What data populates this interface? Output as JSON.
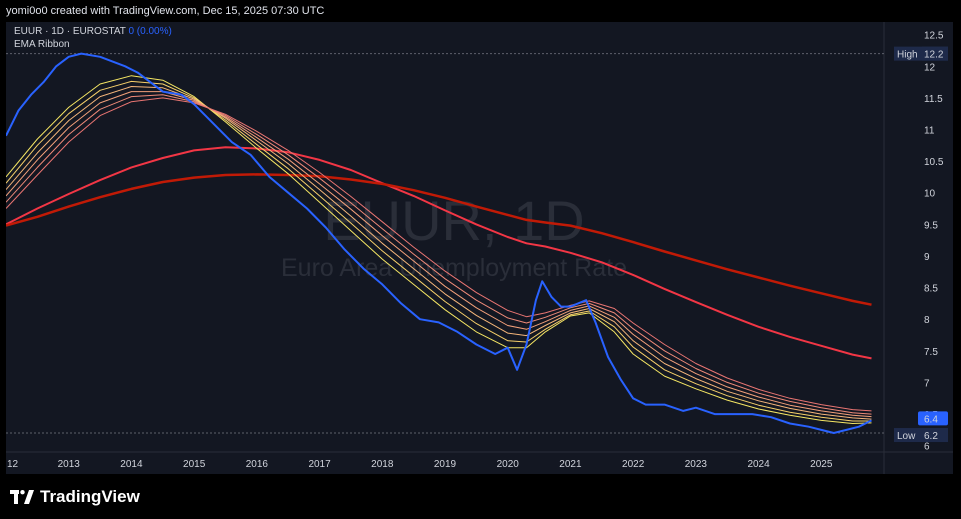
{
  "header": {
    "attribution": "yomi0o0 created with TradingView.com, Dec 15, 2025 07:30 UTC"
  },
  "legend": {
    "symbol": "EUUR · 1D · EUROSTAT",
    "change": "0 (0.00%)",
    "indicator": "EMA Ribbon"
  },
  "watermark": {
    "symbol": "EUUR, 1D",
    "name": "Euro Area Unemployment Rate"
  },
  "markers": {
    "high_label": "High",
    "high_value": "12.2",
    "low_label": "Low",
    "low_value": "6.2",
    "last_value": "6.4"
  },
  "colors": {
    "background": "#131722",
    "price_line": "#2962ff",
    "ema_short": "#f5e663",
    "ema_long_1": "#f23645",
    "ema_long_2": "#c11a06"
  },
  "brand": {
    "name": "TradingView"
  },
  "chart_data": {
    "type": "line",
    "ylim": [
      5.9,
      12.7
    ],
    "yticks": [
      "6",
      "6.5",
      "7",
      "7.5",
      "8",
      "8.5",
      "9",
      "9.5",
      "10",
      "10.5",
      "11",
      "11.5",
      "12",
      "12.5"
    ],
    "x_tick_labels": [
      "12",
      "2013",
      "2014",
      "2015",
      "2016",
      "2017",
      "2018",
      "2019",
      "2020",
      "2021",
      "2022",
      "2023",
      "2024",
      "2025"
    ],
    "x_tick_years": [
      2012,
      2013,
      2014,
      2015,
      2016,
      2017,
      2018,
      2019,
      2020,
      2021,
      2022,
      2023,
      2024,
      2025
    ],
    "xlim": [
      2012.0,
      2026.0
    ],
    "series": [
      {
        "role": "price",
        "color": "#2962ff",
        "x": [
          2012.0,
          2012.2,
          2012.4,
          2012.6,
          2012.8,
          2013.0,
          2013.2,
          2013.5,
          2013.9,
          2014.1,
          2014.3,
          2014.5,
          2014.8,
          2015.0,
          2015.3,
          2015.6,
          2015.9,
          2016.2,
          2016.5,
          2016.8,
          2017.1,
          2017.4,
          2017.7,
          2018.0,
          2018.3,
          2018.6,
          2018.9,
          2019.2,
          2019.5,
          2019.8,
          2020.0,
          2020.15,
          2020.3,
          2020.45,
          2020.55,
          2020.7,
          2020.85,
          2021.0,
          2021.25,
          2021.4,
          2021.6,
          2021.8,
          2022.0,
          2022.2,
          2022.5,
          2022.8,
          2023.0,
          2023.3,
          2023.6,
          2023.9,
          2024.2,
          2024.5,
          2024.8,
          2025.0,
          2025.2,
          2025.4,
          2025.6,
          2025.8
        ],
        "values": [
          10.9,
          11.3,
          11.55,
          11.75,
          12.0,
          12.15,
          12.2,
          12.15,
          12.0,
          11.9,
          11.75,
          11.6,
          11.55,
          11.4,
          11.1,
          10.8,
          10.6,
          10.25,
          10.0,
          9.75,
          9.45,
          9.1,
          8.8,
          8.55,
          8.25,
          8.0,
          7.95,
          7.8,
          7.6,
          7.45,
          7.55,
          7.2,
          7.6,
          8.3,
          8.6,
          8.35,
          8.2,
          8.2,
          8.3,
          7.95,
          7.4,
          7.05,
          6.75,
          6.65,
          6.65,
          6.55,
          6.6,
          6.5,
          6.5,
          6.5,
          6.45,
          6.35,
          6.3,
          6.25,
          6.2,
          6.25,
          6.3,
          6.4
        ]
      },
      {
        "role": "ema-short",
        "name": "EMA 1",
        "color": "#f5e663",
        "x": [
          2012.0,
          2012.5,
          2013.0,
          2013.5,
          2014.0,
          2014.5,
          2015.0,
          2015.5,
          2016.0,
          2016.5,
          2017.0,
          2017.5,
          2018.0,
          2018.5,
          2019.0,
          2019.5,
          2020.0,
          2020.3,
          2020.6,
          2021.0,
          2021.3,
          2021.7,
          2022.0,
          2022.5,
          2023.0,
          2023.5,
          2024.0,
          2024.5,
          2025.0,
          2025.5,
          2025.8
        ],
        "values": [
          10.25,
          10.85,
          11.35,
          11.72,
          11.85,
          11.78,
          11.52,
          11.12,
          10.7,
          10.3,
          9.85,
          9.4,
          8.95,
          8.55,
          8.15,
          7.8,
          7.55,
          7.55,
          7.8,
          8.05,
          8.1,
          7.8,
          7.45,
          7.1,
          6.9,
          6.72,
          6.58,
          6.48,
          6.4,
          6.35,
          6.36
        ]
      },
      {
        "role": "ema-short",
        "name": "EMA 2",
        "color": "#f7d06a",
        "x": [
          2012.0,
          2012.5,
          2013.0,
          2013.5,
          2014.0,
          2014.5,
          2015.0,
          2015.5,
          2016.0,
          2016.5,
          2017.0,
          2017.5,
          2018.0,
          2018.5,
          2019.0,
          2019.5,
          2020.0,
          2020.3,
          2020.6,
          2021.0,
          2021.3,
          2021.7,
          2022.0,
          2022.5,
          2023.0,
          2023.5,
          2024.0,
          2024.5,
          2025.0,
          2025.5,
          2025.8
        ],
        "values": [
          10.15,
          10.75,
          11.25,
          11.62,
          11.76,
          11.72,
          11.5,
          11.15,
          10.76,
          10.38,
          9.95,
          9.52,
          9.08,
          8.68,
          8.28,
          7.93,
          7.66,
          7.64,
          7.84,
          8.07,
          8.13,
          7.88,
          7.56,
          7.2,
          6.98,
          6.79,
          6.64,
          6.53,
          6.45,
          6.39,
          6.39
        ]
      },
      {
        "role": "ema-short",
        "name": "EMA 3",
        "color": "#f5b67a",
        "x": [
          2012.0,
          2012.5,
          2013.0,
          2013.5,
          2014.0,
          2014.5,
          2015.0,
          2015.5,
          2016.0,
          2016.5,
          2017.0,
          2017.5,
          2018.0,
          2018.5,
          2019.0,
          2019.5,
          2020.0,
          2020.3,
          2020.6,
          2021.0,
          2021.3,
          2021.7,
          2022.0,
          2022.5,
          2023.0,
          2023.5,
          2024.0,
          2024.5,
          2025.0,
          2025.5,
          2025.8
        ],
        "values": [
          10.05,
          10.63,
          11.14,
          11.52,
          11.68,
          11.66,
          11.48,
          11.18,
          10.82,
          10.46,
          10.05,
          9.63,
          9.2,
          8.8,
          8.4,
          8.06,
          7.78,
          7.74,
          7.9,
          8.1,
          8.17,
          7.96,
          7.66,
          7.3,
          7.06,
          6.86,
          6.71,
          6.59,
          6.5,
          6.44,
          6.42
        ]
      },
      {
        "role": "ema-short",
        "name": "EMA 4",
        "color": "#f2a07a",
        "x": [
          2012.0,
          2012.5,
          2013.0,
          2013.5,
          2014.0,
          2014.5,
          2015.0,
          2015.5,
          2016.0,
          2016.5,
          2017.0,
          2017.5,
          2018.0,
          2018.5,
          2019.0,
          2019.5,
          2020.0,
          2020.3,
          2020.6,
          2021.0,
          2021.3,
          2021.7,
          2022.0,
          2022.5,
          2023.0,
          2023.5,
          2024.0,
          2024.5,
          2025.0,
          2025.5,
          2025.8
        ],
        "values": [
          9.95,
          10.52,
          11.03,
          11.42,
          11.6,
          11.6,
          11.46,
          11.2,
          10.87,
          10.53,
          10.14,
          9.74,
          9.32,
          8.92,
          8.52,
          8.18,
          7.9,
          7.84,
          7.96,
          8.14,
          8.21,
          8.03,
          7.76,
          7.4,
          7.14,
          6.93,
          6.77,
          6.64,
          6.55,
          6.48,
          6.46
        ]
      },
      {
        "role": "ema-short",
        "name": "EMA 5",
        "color": "#ee8a78",
        "x": [
          2012.0,
          2012.5,
          2013.0,
          2013.5,
          2014.0,
          2014.5,
          2015.0,
          2015.5,
          2016.0,
          2016.5,
          2017.0,
          2017.5,
          2018.0,
          2018.5,
          2019.0,
          2019.5,
          2020.0,
          2020.3,
          2020.6,
          2021.0,
          2021.3,
          2021.7,
          2022.0,
          2022.5,
          2023.0,
          2023.5,
          2024.0,
          2024.5,
          2025.0,
          2025.5,
          2025.8
        ],
        "values": [
          9.85,
          10.4,
          10.92,
          11.32,
          11.52,
          11.55,
          11.44,
          11.22,
          10.92,
          10.6,
          10.23,
          9.84,
          9.43,
          9.03,
          8.64,
          8.3,
          8.02,
          7.94,
          8.03,
          8.18,
          8.25,
          8.1,
          7.85,
          7.5,
          7.22,
          7.0,
          6.83,
          6.7,
          6.6,
          6.52,
          6.5
        ]
      },
      {
        "role": "ema-short",
        "name": "EMA 6",
        "color": "#e97572",
        "x": [
          2012.0,
          2012.5,
          2013.0,
          2013.5,
          2014.0,
          2014.5,
          2015.0,
          2015.5,
          2016.0,
          2016.5,
          2017.0,
          2017.5,
          2018.0,
          2018.5,
          2019.0,
          2019.5,
          2020.0,
          2020.3,
          2020.6,
          2021.0,
          2021.3,
          2021.7,
          2022.0,
          2022.5,
          2023.0,
          2023.5,
          2024.0,
          2024.5,
          2025.0,
          2025.5,
          2025.8
        ],
        "values": [
          9.75,
          10.28,
          10.8,
          11.22,
          11.44,
          11.5,
          11.42,
          11.24,
          10.97,
          10.67,
          10.32,
          9.94,
          9.54,
          9.14,
          8.76,
          8.42,
          8.14,
          8.04,
          8.1,
          8.22,
          8.29,
          8.17,
          7.94,
          7.6,
          7.3,
          7.07,
          6.89,
          6.75,
          6.65,
          6.57,
          6.55
        ]
      },
      {
        "role": "ema-long",
        "name": "EMA 7",
        "color": "#f23645",
        "x": [
          2012.0,
          2012.5,
          2013.0,
          2013.5,
          2014.0,
          2014.5,
          2015.0,
          2015.5,
          2016.0,
          2016.5,
          2017.0,
          2017.5,
          2018.0,
          2018.5,
          2019.0,
          2019.5,
          2020.0,
          2020.3,
          2020.6,
          2021.0,
          2021.5,
          2022.0,
          2022.5,
          2023.0,
          2023.5,
          2024.0,
          2024.5,
          2025.0,
          2025.5,
          2025.8
        ],
        "values": [
          9.5,
          9.75,
          9.98,
          10.2,
          10.4,
          10.55,
          10.67,
          10.72,
          10.7,
          10.64,
          10.52,
          10.36,
          10.15,
          9.95,
          9.72,
          9.5,
          9.3,
          9.2,
          9.15,
          9.05,
          8.9,
          8.7,
          8.48,
          8.27,
          8.07,
          7.88,
          7.72,
          7.58,
          7.44,
          7.38
        ]
      },
      {
        "role": "ema-long",
        "name": "EMA 8",
        "color": "#c11a06",
        "x": [
          2012.0,
          2012.5,
          2013.0,
          2013.5,
          2014.0,
          2014.5,
          2015.0,
          2015.5,
          2016.0,
          2016.5,
          2017.0,
          2017.5,
          2018.0,
          2018.5,
          2019.0,
          2019.5,
          2020.0,
          2020.3,
          2020.6,
          2021.0,
          2021.5,
          2022.0,
          2022.5,
          2023.0,
          2023.5,
          2024.0,
          2024.5,
          2025.0,
          2025.5,
          2025.8
        ],
        "values": [
          9.48,
          9.62,
          9.78,
          9.93,
          10.06,
          10.17,
          10.24,
          10.28,
          10.29,
          10.28,
          10.26,
          10.21,
          10.14,
          10.04,
          9.92,
          9.78,
          9.65,
          9.57,
          9.53,
          9.48,
          9.36,
          9.22,
          9.07,
          8.93,
          8.79,
          8.66,
          8.53,
          8.41,
          8.29,
          8.23
        ]
      }
    ]
  }
}
